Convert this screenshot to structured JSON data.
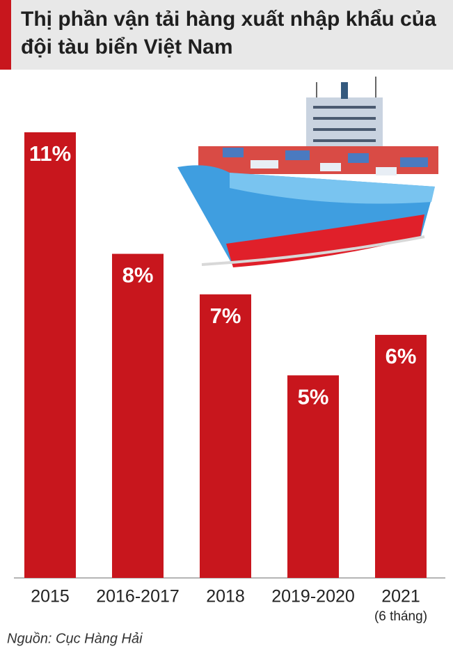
{
  "chart_data": {
    "type": "bar",
    "title": "Thị phần vận tải hàng xuất nhập khẩu của đội tàu biển Việt Nam",
    "categories": [
      "2015",
      "2016-2017",
      "2018",
      "2019-2020",
      "2021"
    ],
    "values": [
      11,
      8,
      7,
      5,
      6
    ],
    "value_labels": [
      "11%",
      "8%",
      "7%",
      "5%",
      "6%"
    ],
    "color": "#c8161d",
    "annotations": [
      {
        "text": "(6 tháng)",
        "category": 4
      }
    ],
    "source": "Nguồn: Cục Hàng Hải"
  }
}
